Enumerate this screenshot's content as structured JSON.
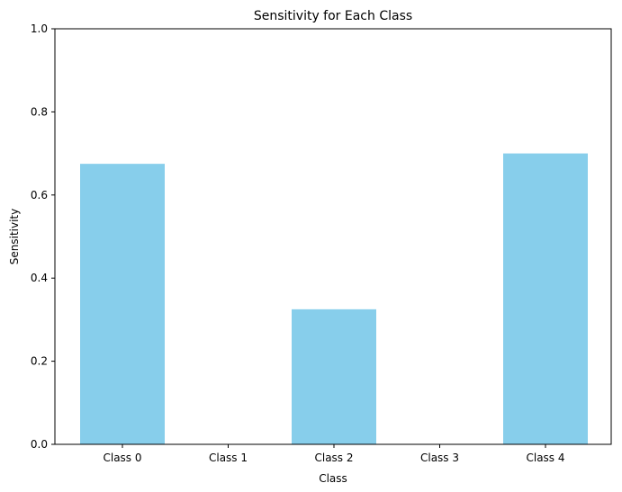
{
  "chart_data": {
    "type": "bar",
    "title": "Sensitivity for Each Class",
    "xlabel": "Class",
    "ylabel": "Sensitivity",
    "categories": [
      "Class 0",
      "Class 1",
      "Class 2",
      "Class 3",
      "Class 4"
    ],
    "values": [
      0.675,
      0.0,
      0.325,
      0.0,
      0.7
    ],
    "ylim": [
      0,
      1
    ],
    "yticks": [
      "0.0",
      "0.2",
      "0.4",
      "0.6",
      "0.8",
      "1.0"
    ],
    "bar_color": "#87CEEB",
    "grid": false,
    "legend": "none"
  }
}
